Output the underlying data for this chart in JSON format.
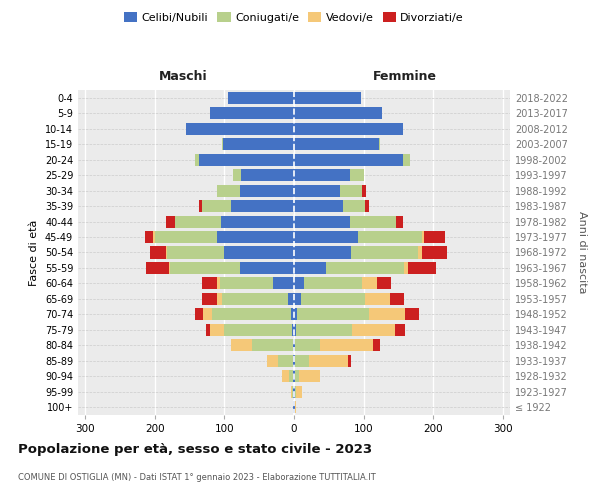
{
  "age_groups": [
    "100+",
    "95-99",
    "90-94",
    "85-89",
    "80-84",
    "75-79",
    "70-74",
    "65-69",
    "60-64",
    "55-59",
    "50-54",
    "45-49",
    "40-44",
    "35-39",
    "30-34",
    "25-29",
    "20-24",
    "15-19",
    "10-14",
    "5-9",
    "0-4"
  ],
  "birth_years": [
    "≤ 1922",
    "1923-1927",
    "1928-1932",
    "1933-1937",
    "1938-1942",
    "1943-1947",
    "1948-1952",
    "1953-1957",
    "1958-1962",
    "1963-1967",
    "1968-1972",
    "1973-1977",
    "1978-1982",
    "1983-1987",
    "1988-1992",
    "1993-1997",
    "1998-2002",
    "2003-2007",
    "2008-2012",
    "2013-2017",
    "2018-2022"
  ],
  "maschi_celibi": [
    1,
    1,
    1,
    1,
    2,
    3,
    5,
    8,
    30,
    78,
    100,
    110,
    105,
    90,
    78,
    76,
    136,
    102,
    155,
    120,
    95
  ],
  "maschi_coniugati": [
    0,
    2,
    6,
    22,
    58,
    97,
    112,
    96,
    76,
    100,
    82,
    90,
    66,
    42,
    32,
    12,
    6,
    1,
    0,
    0,
    0
  ],
  "maschi_vedovi": [
    0,
    2,
    10,
    16,
    30,
    20,
    13,
    6,
    4,
    2,
    2,
    2,
    0,
    0,
    0,
    0,
    0,
    0,
    0,
    0,
    0
  ],
  "maschi_divorziati": [
    0,
    0,
    0,
    0,
    0,
    6,
    12,
    22,
    22,
    32,
    22,
    12,
    12,
    4,
    0,
    0,
    0,
    0,
    0,
    0,
    0
  ],
  "femmine_nubili": [
    1,
    1,
    1,
    1,
    2,
    3,
    5,
    10,
    15,
    46,
    82,
    92,
    80,
    70,
    66,
    80,
    156,
    122,
    156,
    126,
    96
  ],
  "femmine_coniugate": [
    0,
    2,
    6,
    20,
    36,
    80,
    102,
    92,
    82,
    112,
    96,
    92,
    66,
    32,
    32,
    20,
    10,
    1,
    0,
    0,
    0
  ],
  "femmine_vedove": [
    2,
    8,
    30,
    56,
    76,
    62,
    52,
    36,
    22,
    6,
    5,
    3,
    0,
    0,
    0,
    0,
    0,
    0,
    0,
    0,
    0
  ],
  "femmine_divorziate": [
    0,
    0,
    0,
    5,
    10,
    14,
    20,
    20,
    20,
    40,
    36,
    30,
    10,
    5,
    5,
    0,
    0,
    0,
    0,
    0,
    0
  ],
  "color_celibi": "#4472c4",
  "color_coniugati": "#b8d08c",
  "color_vedovi": "#f5c878",
  "color_divorziati": "#cc2020",
  "xlim": 310,
  "bg_color": "#ebebeb",
  "grid_color_x": "#ffffff",
  "grid_color_y": "#cccccc",
  "title": "Popolazione per età, sesso e stato civile - 2023",
  "subtitle": "COMUNE DI OSTIGLIA (MN) - Dati ISTAT 1° gennaio 2023 - Elaborazione TUTTITALIA.IT",
  "ylabel": "Fasce di età",
  "ylabel_right": "Anni di nascita",
  "legend_labels": [
    "Celibi/Nubili",
    "Coniugati/e",
    "Vedovi/e",
    "Divorziati/e"
  ],
  "maschi_label": "Maschi",
  "femmine_label": "Femmine"
}
